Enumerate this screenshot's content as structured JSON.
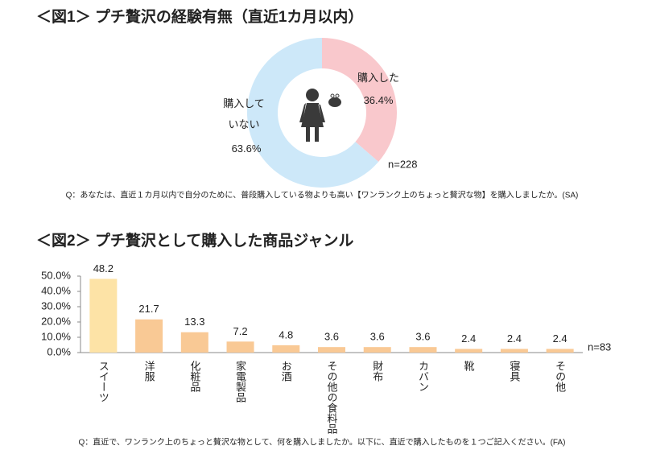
{
  "chart_data": [
    {
      "type": "pie",
      "title": "＜図1＞ プチ贅沢の経験有無（直近1カ月以内）",
      "categories": [
        "購入した",
        "購入していない"
      ],
      "values": [
        36.4,
        63.6
      ],
      "value_labels": [
        "36.4%",
        "63.6%"
      ],
      "colors": [
        "#f9c8cc",
        "#cde8f9"
      ],
      "annotation": "n=228",
      "note": "Q：あなたは、直近１カ月以内で自分のために、普段購入している物よりも高い【ワンランク上のちょっと贅沢な物】を購入しましたか。(SA)"
    },
    {
      "type": "bar",
      "title": "＜図2＞ プチ贅沢として購入した商品ジャンル",
      "categories": [
        "スイーツ",
        "洋服",
        "化粧品",
        "家電製品",
        "お酒",
        "その他の食料品",
        "財布",
        "カバン",
        "靴",
        "寝具",
        "その他"
      ],
      "values": [
        48.2,
        21.7,
        13.3,
        7.2,
        4.8,
        3.6,
        3.6,
        3.6,
        2.4,
        2.4,
        2.4
      ],
      "colors": [
        "#fde3a6",
        "#f9c995",
        "#f9c995",
        "#f9c995",
        "#f9c995",
        "#f9c995",
        "#f9c995",
        "#f9c995",
        "#f9c995",
        "#f9c995",
        "#f9c995"
      ],
      "ylim": [
        0,
        50
      ],
      "yticks": [
        {
          "value": 0,
          "label": "0.0%"
        },
        {
          "value": 10,
          "label": "10.0%"
        },
        {
          "value": 20,
          "label": "20.0%"
        },
        {
          "value": 30,
          "label": "30.0%"
        },
        {
          "value": 40,
          "label": "40.0%"
        },
        {
          "value": 50,
          "label": "50.0%"
        }
      ],
      "annotation": "n=83",
      "note": "Q：直近で、ワンランク上のちょっと贅沢な物として、何を購入しましたか。以下に、直近で購入したものを１つご記入ください。(FA)"
    }
  ]
}
